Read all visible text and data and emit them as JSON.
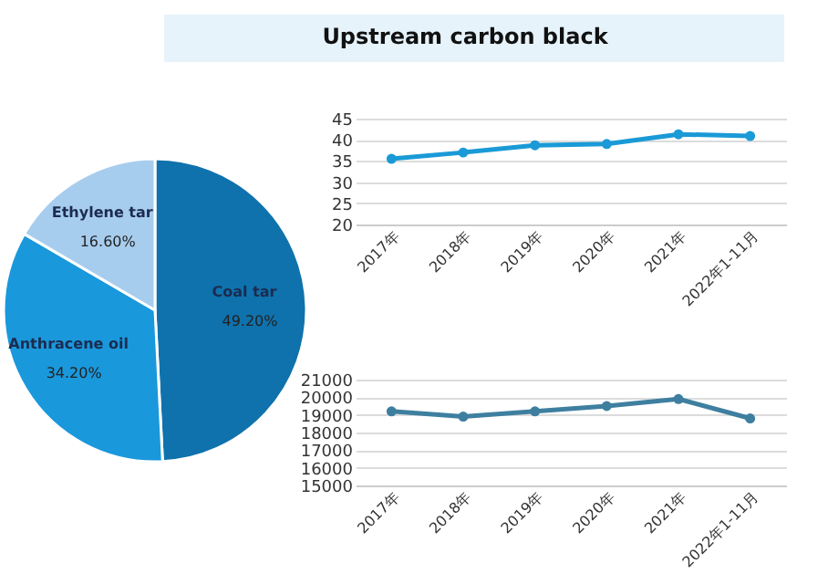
{
  "chart_data": [
    {
      "type": "pie",
      "categories": [
        "Coal tar",
        "Anthracene oil",
        "Ethylene tar"
      ],
      "values": [
        49.2,
        34.2,
        16.6
      ],
      "value_labels": [
        "49.20%",
        "34.20%",
        "16.60%"
      ],
      "colors": [
        "#0f72ad",
        "#1a98dc",
        "#a7cdee"
      ]
    },
    {
      "type": "line",
      "title": "Upstream carbon black",
      "categories": [
        "2017年",
        "2018年",
        "2019年",
        "2020年",
        "2021年",
        "2022年1-11月"
      ],
      "values": [
        35.5,
        37,
        38.7,
        39,
        41.3,
        40.9
      ],
      "color": "#1a9ad6",
      "ylim": [
        20,
        45
      ],
      "yticks": [
        20,
        25,
        30,
        35,
        40,
        45
      ],
      "grid": "y",
      "marker": "circle"
    },
    {
      "type": "line",
      "categories": [
        "2017年",
        "2018年",
        "2019年",
        "2020年",
        "2021年",
        "2022年1-11月"
      ],
      "values": [
        19200,
        18900,
        19200,
        19500,
        19900,
        18800
      ],
      "color": "#3e7fa0",
      "ylim": [
        15000,
        21000
      ],
      "yticks": [
        15000,
        16000,
        17000,
        18000,
        19000,
        20000,
        21000
      ],
      "grid": "y",
      "marker": "circle"
    }
  ]
}
